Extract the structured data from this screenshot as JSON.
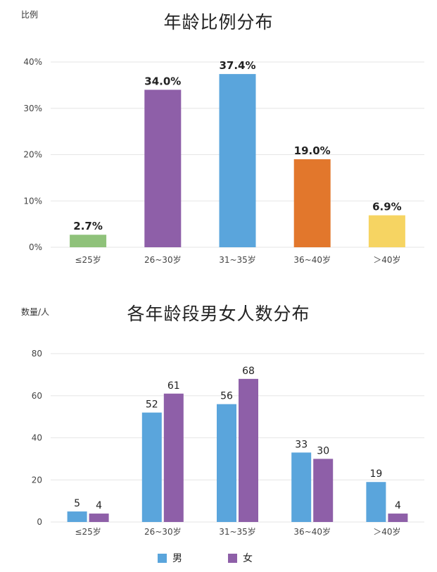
{
  "chart_data": [
    {
      "type": "bar",
      "title": "年龄比例分布",
      "ylabel": "比例",
      "ylim": [
        0,
        40
      ],
      "yticks": [
        "0%",
        "10%",
        "20%",
        "30%",
        "40%"
      ],
      "categories": [
        "≤25岁",
        "26~30岁",
        "31~35岁",
        "36~40岁",
        "＞40岁"
      ],
      "values": [
        2.7,
        34.0,
        37.4,
        19.0,
        6.9
      ],
      "value_labels": [
        "2.7%",
        "34.0%",
        "37.4%",
        "19.0%",
        "6.9%"
      ],
      "colors": [
        "#8fc27a",
        "#8e5fa8",
        "#5aa5dc",
        "#e2772c",
        "#f6d462"
      ],
      "grid": true
    },
    {
      "type": "bar",
      "title": "各年龄段男女人数分布",
      "ylabel": "数量/人",
      "ylim": [
        0,
        80
      ],
      "yticks": [
        "0",
        "20",
        "40",
        "60",
        "80"
      ],
      "categories": [
        "≤25岁",
        "26~30岁",
        "31~35岁",
        "36~40岁",
        "＞40岁"
      ],
      "series": [
        {
          "name": "男",
          "values": [
            5,
            52,
            56,
            33,
            19
          ],
          "color": "#5aa5dc"
        },
        {
          "name": "女",
          "values": [
            4,
            61,
            68,
            30,
            4
          ],
          "color": "#8e5fa8"
        }
      ],
      "legend": "bottom",
      "grid": true
    }
  ]
}
